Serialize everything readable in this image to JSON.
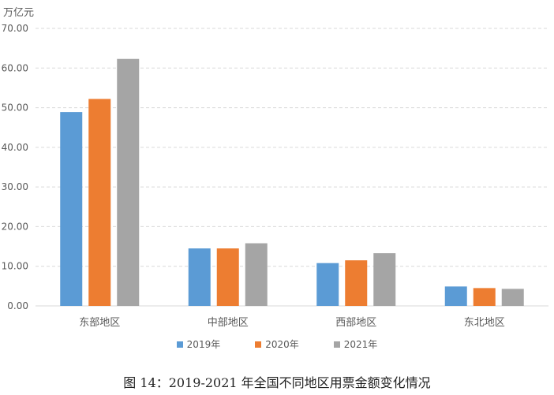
{
  "chart_data": {
    "type": "bar",
    "unit": "万亿元",
    "categories": [
      "东部地区",
      "中部地区",
      "西部地区",
      "东北地区"
    ],
    "series": [
      {
        "name": "2019年",
        "color": "#5b9bd5",
        "values": [
          48.9,
          14.5,
          10.8,
          4.9
        ]
      },
      {
        "name": "2020年",
        "color": "#ed7d31",
        "values": [
          52.2,
          14.5,
          11.5,
          4.5
        ]
      },
      {
        "name": "2021年",
        "color": "#a5a5a5",
        "values": [
          62.3,
          15.8,
          13.3,
          4.3
        ]
      }
    ],
    "ylim": [
      0,
      70
    ],
    "yticks": [
      "0.00",
      "10.00",
      "20.00",
      "30.00",
      "40.00",
      "50.00",
      "60.00",
      "70.00"
    ],
    "grid": true,
    "legend_position": "bottom"
  },
  "caption": "图 14：2019-2021 年全国不同地区用票金额变化情况"
}
